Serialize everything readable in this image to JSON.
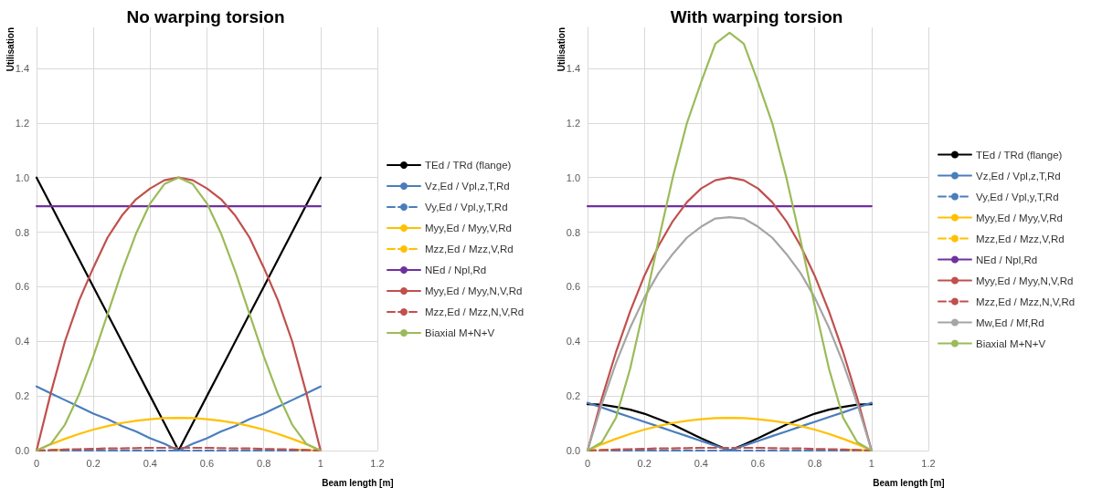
{
  "chart_data": [
    {
      "type": "line",
      "title": "No warping torsion",
      "xlabel": "Beam length [m]",
      "ylabel": "Utilisation",
      "x": [
        0,
        0.05,
        0.1,
        0.15,
        0.2,
        0.25,
        0.3,
        0.35,
        0.4,
        0.45,
        0.5,
        0.55,
        0.6,
        0.65,
        0.7,
        0.75,
        0.8,
        0.85,
        0.9,
        0.95,
        1
      ],
      "xlim": [
        0,
        1.2
      ],
      "xticks": [
        0,
        0.2,
        0.4,
        0.6,
        0.8,
        1,
        1.2
      ],
      "ylim": [
        0,
        1.55
      ],
      "yticks": [
        {
          "value": 0,
          "label": "0.0"
        },
        {
          "value": 0.2,
          "label": "0.2"
        },
        {
          "value": 0.4,
          "label": "0.4"
        },
        {
          "value": 0.6,
          "label": "0.6"
        },
        {
          "value": 0.8,
          "label": "0.8"
        },
        {
          "value": 1,
          "label": "1.0"
        },
        {
          "value": 1.2,
          "label": "1.2"
        },
        {
          "value": 1.4,
          "label": "1.4"
        }
      ],
      "grid": true,
      "legend": "right",
      "marker": "none",
      "series": [
        {
          "name": "TEd / TRd (flange)",
          "color": "#000000",
          "values": [
            1,
            0.9,
            0.8,
            0.7,
            0.6,
            0.5,
            0.4,
            0.3,
            0.2,
            0.1,
            0,
            0.1,
            0.2,
            0.3,
            0.4,
            0.5,
            0.6,
            0.7,
            0.8,
            0.9,
            1
          ]
        },
        {
          "name": "Vz,Ed / Vpl,z,T,Rd",
          "color": "#4a7ebb",
          "values": [
            0.235,
            0.21,
            0.185,
            0.16,
            0.135,
            0.115,
            0.09,
            0.07,
            0.045,
            0.025,
            0,
            0.025,
            0.045,
            0.07,
            0.09,
            0.115,
            0.135,
            0.16,
            0.185,
            0.21,
            0.235
          ]
        },
        {
          "name": "Vy,Ed / Vpl,y,T,Rd",
          "color": "#4a7ebb",
          "line_style": "dashed",
          "values": [
            0,
            0,
            0,
            0,
            0,
            0,
            0,
            0,
            0,
            0,
            0,
            0,
            0,
            0,
            0,
            0,
            0,
            0,
            0,
            0,
            0
          ]
        },
        {
          "name": "Myy,Ed / Myy,V,Rd",
          "color": "#ffc000",
          "values": [
            0,
            0.023,
            0.043,
            0.061,
            0.077,
            0.09,
            0.101,
            0.109,
            0.115,
            0.119,
            0.12,
            0.119,
            0.115,
            0.109,
            0.101,
            0.09,
            0.077,
            0.061,
            0.043,
            0.023,
            0
          ]
        },
        {
          "name": "Mzz,Ed / Mzz,V,Rd",
          "color": "#ffc000",
          "line_style": "dashed",
          "values": [
            null,
            0.002,
            0.004,
            null,
            null,
            null,
            null,
            null,
            null,
            null,
            null,
            null,
            null,
            null,
            null,
            null,
            null,
            null,
            0.004,
            0.002,
            0
          ]
        },
        {
          "name": "NEd / Npl,Rd",
          "color": "#7030a0",
          "values": [
            0.895,
            0.895,
            0.895,
            0.895,
            0.895,
            0.895,
            0.895,
            0.895,
            0.895,
            0.895,
            0.895,
            0.895,
            0.895,
            0.895,
            0.895,
            0.895,
            0.895,
            0.895,
            0.895,
            0.895,
            0.895
          ]
        },
        {
          "name": "Myy,Ed / Myy,N,V,Rd",
          "color": "#c0504d",
          "values": [
            0,
            0.21,
            0.4,
            0.55,
            0.67,
            0.78,
            0.86,
            0.92,
            0.96,
            0.99,
            1,
            0.99,
            0.96,
            0.92,
            0.86,
            0.78,
            0.67,
            0.55,
            0.4,
            0.21,
            0
          ]
        },
        {
          "name": "Mzz,Ed / Mzz,N,V,Rd",
          "color": "#c0504d",
          "line_style": "dashed",
          "values": [
            0,
            0.002,
            0.004,
            0.005,
            0.006,
            0.008,
            0.008,
            0.009,
            0.01,
            0.01,
            0.01,
            0.01,
            0.01,
            0.009,
            0.008,
            0.008,
            0.006,
            0.005,
            0.004,
            0.002,
            0
          ]
        },
        {
          "name": "Biaxial M+N+V",
          "color": "#9bbb59",
          "values": [
            0,
            0.024,
            0.095,
            0.206,
            0.345,
            0.5,
            0.655,
            0.794,
            0.905,
            0.976,
            1,
            0.976,
            0.905,
            0.794,
            0.655,
            0.5,
            0.345,
            0.206,
            0.095,
            0.024,
            0
          ]
        }
      ]
    },
    {
      "type": "line",
      "title": "With warping torsion",
      "xlabel": "Beam length [m]",
      "ylabel": "Utilisation",
      "x": [
        0,
        0.05,
        0.1,
        0.15,
        0.2,
        0.25,
        0.3,
        0.35,
        0.4,
        0.45,
        0.5,
        0.55,
        0.6,
        0.65,
        0.7,
        0.75,
        0.8,
        0.85,
        0.9,
        0.95,
        1
      ],
      "xlim": [
        0,
        1.2
      ],
      "xticks": [
        0,
        0.2,
        0.4,
        0.6,
        0.8,
        1,
        1.2
      ],
      "ylim": [
        0,
        1.55
      ],
      "yticks": [
        {
          "value": 0,
          "label": "0.0"
        },
        {
          "value": 0.2,
          "label": "0.2"
        },
        {
          "value": 0.4,
          "label": "0.4"
        },
        {
          "value": 0.6,
          "label": "0.6"
        },
        {
          "value": 0.8,
          "label": "0.8"
        },
        {
          "value": 1,
          "label": "1.0"
        },
        {
          "value": 1.2,
          "label": "1.2"
        },
        {
          "value": 1.4,
          "label": "1.4"
        }
      ],
      "grid": true,
      "legend": "right",
      "marker": "none",
      "series": [
        {
          "name": "TEd / TRd (flange)",
          "color": "#000000",
          "values": [
            0.17,
            0.168,
            0.16,
            0.15,
            0.135,
            0.115,
            0.095,
            0.07,
            0.045,
            0.022,
            0,
            0.022,
            0.045,
            0.07,
            0.095,
            0.115,
            0.135,
            0.15,
            0.16,
            0.168,
            0.17
          ]
        },
        {
          "name": "Vz,Ed / Vpl,z,T,Rd",
          "color": "#4a7ebb",
          "values": [
            0.175,
            0.158,
            0.14,
            0.123,
            0.105,
            0.088,
            0.07,
            0.053,
            0.035,
            0.018,
            0,
            0.018,
            0.035,
            0.053,
            0.07,
            0.088,
            0.105,
            0.123,
            0.14,
            0.158,
            0.175
          ]
        },
        {
          "name": "Vy,Ed / Vpl,y,T,Rd",
          "color": "#4a7ebb",
          "line_style": "dashed",
          "values": [
            0,
            0,
            0,
            0,
            0,
            0,
            0,
            0,
            0,
            0,
            0,
            0,
            0,
            0,
            0,
            0,
            0,
            0,
            0,
            0,
            0
          ]
        },
        {
          "name": "Myy,Ed / Myy,V,Rd",
          "color": "#ffc000",
          "values": [
            0,
            0.023,
            0.043,
            0.061,
            0.077,
            0.09,
            0.101,
            0.109,
            0.115,
            0.119,
            0.12,
            0.119,
            0.115,
            0.109,
            0.101,
            0.09,
            0.077,
            0.061,
            0.043,
            0.023,
            0
          ]
        },
        {
          "name": "Mzz,Ed / Mzz,V,Rd",
          "color": "#ffc000",
          "line_style": "dashed",
          "values": [
            0,
            0.002,
            0.004,
            null,
            null,
            null,
            null,
            null,
            null,
            null,
            null,
            null,
            null,
            null,
            null,
            null,
            null,
            null,
            0.004,
            0.002,
            0
          ]
        },
        {
          "name": "NEd / Npl,Rd",
          "color": "#7030a0",
          "values": [
            0.895,
            0.895,
            0.895,
            0.895,
            0.895,
            0.895,
            0.895,
            0.895,
            0.895,
            0.895,
            0.895,
            0.895,
            0.895,
            0.895,
            0.895,
            0.895,
            0.895,
            0.895,
            0.895,
            0.895,
            0.895
          ]
        },
        {
          "name": "Myy,Ed / Myy,N,V,Rd",
          "color": "#c0504d",
          "values": [
            0,
            0.19,
            0.36,
            0.51,
            0.64,
            0.75,
            0.84,
            0.91,
            0.96,
            0.99,
            1,
            0.99,
            0.96,
            0.91,
            0.84,
            0.75,
            0.64,
            0.51,
            0.36,
            0.19,
            0
          ]
        },
        {
          "name": "Mzz,Ed / Mzz,N,V,Rd",
          "color": "#c0504d",
          "line_style": "dashed",
          "values": [
            0,
            0.002,
            0.004,
            0.005,
            0.006,
            0.008,
            0.008,
            0.009,
            0.01,
            0.01,
            0.01,
            0.01,
            0.01,
            0.009,
            0.008,
            0.008,
            0.006,
            0.005,
            0.004,
            0.002,
            0
          ]
        },
        {
          "name": "Mw,Ed / Mf,Rd",
          "color": "#a5a5a5",
          "values": [
            0,
            0.17,
            0.32,
            0.45,
            0.56,
            0.65,
            0.72,
            0.78,
            0.82,
            0.85,
            0.855,
            0.85,
            0.82,
            0.78,
            0.72,
            0.65,
            0.56,
            0.45,
            0.32,
            0.17,
            0
          ]
        },
        {
          "name": "Biaxial M+N+V",
          "color": "#9bbb59",
          "values": [
            0,
            0.03,
            0.12,
            0.3,
            0.53,
            0.77,
            1.0,
            1.2,
            1.35,
            1.49,
            1.53,
            1.49,
            1.35,
            1.2,
            1.0,
            0.77,
            0.53,
            0.3,
            0.12,
            0.03,
            0
          ]
        }
      ]
    }
  ]
}
